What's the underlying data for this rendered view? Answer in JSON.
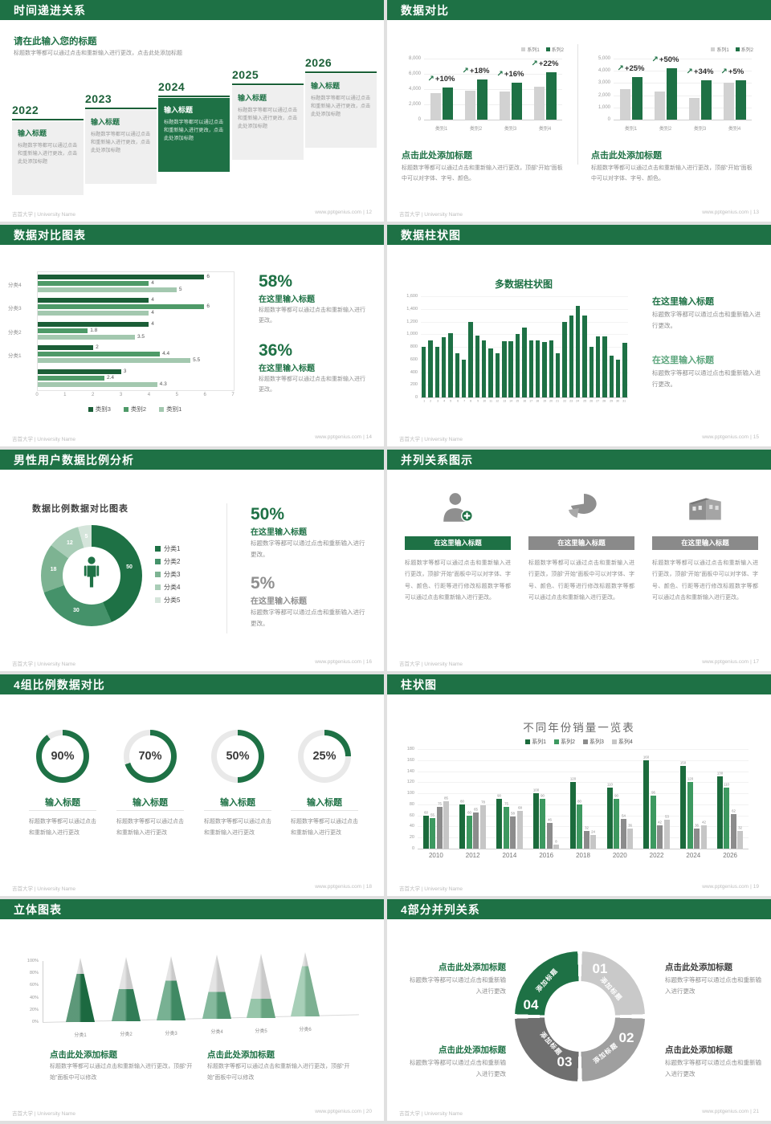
{
  "colors": {
    "green": "#1e7145",
    "green_mid": "#4e9a68",
    "green_light": "#a3c8af",
    "gray_bar": "#d2d2d2",
    "dark": "#3f3f3f",
    "body_gray": "#8f8f8f"
  },
  "footer": {
    "left": "吉首大学 | University Name",
    "site": "www.pptgenius.com",
    "sep": " | "
  },
  "slides": [
    {
      "page": "12",
      "title": "时间递进关系",
      "heading": "请在此输入您的标题",
      "intro": "标题数字等都可以通过点击和重新输入进行更改，点击此处添加标题",
      "item_title": "输入标题",
      "item_body": "标题数字等都可以通过点击和重新输入进行更改，点击此处添加标题",
      "years": [
        "2022",
        "2023",
        "2024",
        "2025",
        "2026"
      ],
      "highlight_year": "2024"
    },
    {
      "page": "13",
      "title": "数据对比",
      "charts": [
        {
          "type": "bar",
          "legend": [
            "系列1",
            "系列2"
          ],
          "yticks": [
            "8,000",
            "6,000",
            "4,000",
            "2,000",
            "0"
          ],
          "ymax": 8000,
          "categories": [
            "类别1",
            "类别2",
            "类别3",
            "类别4"
          ],
          "series1": [
            3500,
            3800,
            3700,
            4300
          ],
          "series2": [
            4200,
            5300,
            4800,
            6200
          ],
          "deltas": [
            "+10%",
            "+18%",
            "+16%",
            "+22%"
          ],
          "heading": "点击此处添加标题",
          "body": "标题数字等都可以通过点击和重新输入进行更改，顶部“开始”面板中可以对字体、字号、颜色。"
        },
        {
          "type": "bar",
          "legend": [
            "系列1",
            "系列2"
          ],
          "yticks": [
            "5,000",
            "4,000",
            "3,000",
            "2,000",
            "1,000",
            "0"
          ],
          "ymax": 5000,
          "categories": [
            "类别1",
            "类别2",
            "类别3",
            "类别4"
          ],
          "series1": [
            2500,
            2300,
            1800,
            3000
          ],
          "series2": [
            3500,
            4200,
            3200,
            3200
          ],
          "deltas": [
            "+25%",
            "+50%",
            "+34%",
            "+5%"
          ],
          "heading": "点击此处添加标题",
          "body": "标题数字等都可以通过点击和重新输入进行更改，顶部“开始”面板中可以对字体、字号、颜色。"
        }
      ]
    },
    {
      "page": "14",
      "title": "数据对比图表",
      "chart": {
        "type": "bar-horizontal",
        "xmax": 7,
        "xticks": [
          "0",
          "1",
          "2",
          "3",
          "4",
          "5",
          "6",
          "7"
        ],
        "legend": [
          "类别3",
          "类别2",
          "类别1"
        ],
        "series_colors": [
          "#1b5e37",
          "#4e9a68",
          "#a3c8af"
        ],
        "groups": [
          {
            "label": "分类4",
            "values": [
              6,
              4,
              5
            ]
          },
          {
            "label": "分类3",
            "values": [
              4,
              6,
              4
            ]
          },
          {
            "label": "分类2",
            "values": [
              4,
              1.8,
              3.5
            ]
          },
          {
            "label": "分类1",
            "values": [
              2,
              4.4,
              5.5
            ]
          },
          {
            "label": "",
            "values": [
              3,
              2.4,
              4.3
            ]
          }
        ]
      },
      "stats": [
        {
          "value": "58%",
          "label": "在这里输入标题",
          "body": "标题数字等都可以通过点击和重新输入进行更改。"
        },
        {
          "value": "36%",
          "label": "在这里输入标题",
          "body": "标题数字等都可以通过点击和重新输入进行更改。"
        }
      ]
    },
    {
      "page": "15",
      "title": "数据柱状图",
      "chart": {
        "type": "bar",
        "title": "多数据柱状图",
        "ymax": 1600,
        "yticks": [
          "1,600",
          "1,400",
          "1,200",
          "1,000",
          "800",
          "600",
          "400",
          "200",
          "0"
        ],
        "values": [
          800,
          900,
          800,
          950,
          1020,
          700,
          600,
          1200,
          980,
          900,
          780,
          700,
          890,
          890,
          1000,
          1100,
          900,
          900,
          880,
          900,
          700,
          1200,
          1300,
          1450,
          1300,
          800,
          960,
          970,
          660,
          600,
          870
        ]
      },
      "blocks": [
        {
          "heading": "在这里输入标题",
          "body": "标题数字等都可以通过点击和重新输入进行更改。",
          "strong": true
        },
        {
          "heading": "在这里输入标题",
          "body": "标题数字等都可以通过点击和重新输入进行更改。",
          "strong": false
        }
      ]
    },
    {
      "page": "16",
      "title": "男性用户数据比例分析",
      "chart": {
        "type": "pie",
        "title": "数据比例数据对比图表",
        "values": [
          50,
          30,
          18,
          12,
          5
        ],
        "labels": [
          "分类1",
          "分类2",
          "分类3",
          "分类4",
          "分类5"
        ],
        "colors": [
          "#1e7145",
          "#45926a",
          "#7db392",
          "#a9cdb7",
          "#d5e5db"
        ]
      },
      "stats": [
        {
          "value": "50%",
          "label": "在这里输入标题",
          "body": "标题数字等都可以通过点击和重新输入进行更改。",
          "green": true
        },
        {
          "value": "5%",
          "label": "在这里输入标题",
          "body": "标题数字等都可以通过点击和重新输入进行更改。",
          "green": false
        }
      ]
    },
    {
      "page": "17",
      "title": "并列关系图示",
      "banner": "在这里输入标题",
      "col_body": "标题数字等都可以通过点击和重新输入进行更改，顶部“开始”面板中可以对字体、字号、颜色、行距等进行修改标题数字等都可以通过点击和重新输入进行更改。",
      "icons": [
        "person-add",
        "pie-3d",
        "building"
      ]
    },
    {
      "page": "18",
      "title": "4组比例数据对比",
      "item_title": "输入标题",
      "item_body": "标题数字等都可以通过点击和重新输入进行更改",
      "gauges": [
        90,
        70,
        50,
        25
      ]
    },
    {
      "page": "19",
      "title": "柱状图",
      "chart": {
        "type": "bar",
        "title": "不同年份销量一览表",
        "legend": [
          "系列1",
          "系列2",
          "系列3",
          "系列4"
        ],
        "legend_colors": [
          "#1b6b3c",
          "#3d9960",
          "#8c8c8c",
          "#c6c6c6"
        ],
        "ymax": 180,
        "yticks": [
          "180",
          "160",
          "140",
          "120",
          "100",
          "80",
          "60",
          "40",
          "20",
          "0"
        ],
        "categories": [
          "2010",
          "2012",
          "2014",
          "2016",
          "2018",
          "2020",
          "2022",
          "2024",
          "2026"
        ],
        "series": [
          [
            60,
            80,
            90,
            100,
            120,
            110,
            160,
            150,
            130
          ],
          [
            55,
            60,
            75,
            90,
            80,
            90,
            96,
            120,
            110
          ],
          [
            75,
            65,
            58,
            46,
            32,
            54,
            42,
            36,
            62
          ],
          [
            85,
            78,
            68,
            8,
            24,
            36,
            53,
            42,
            32
          ]
        ]
      }
    },
    {
      "page": "20",
      "title": "立体图表",
      "chart": {
        "type": "cone",
        "yticks": [
          "100%",
          "80%",
          "60%",
          "40%",
          "20%",
          "0%"
        ],
        "labels": [
          "分类1",
          "分类2",
          "分类3",
          "分类4",
          "分类5",
          "分类6"
        ],
        "fills": [
          75,
          50,
          62,
          42,
          30,
          78
        ],
        "colors": [
          "#1e7145",
          "#35855c",
          "#44936a",
          "#569e77",
          "#6fb08a",
          "#86bd9d"
        ]
      },
      "blocks": [
        {
          "heading": "点击此处添加标题",
          "body": "标题数字等都可以通过点击和重新输入进行更改，顶部“开始”面板中可以修改"
        },
        {
          "heading": "点击此处添加标题",
          "body": "标题数字等都可以通过点击和重新输入进行更改，顶部“开始”面板中可以修改"
        }
      ]
    },
    {
      "page": "21",
      "title": "4部分并列关系",
      "ring": {
        "label": "添加标题",
        "segments": [
          {
            "num": "01",
            "color": "#c9c9c9"
          },
          {
            "num": "02",
            "color": "#9f9f9f"
          },
          {
            "num": "03",
            "color": "#6f6f6f"
          },
          {
            "num": "04",
            "color": "#1e7145"
          }
        ]
      },
      "blocks": [
        {
          "heading": "点击此处添加标题",
          "body": "标题数字等都可以通过点击和重新输入进行更改",
          "green": true
        },
        {
          "heading": "点击此处添加标题",
          "body": "标题数字等都可以通过点击和重新输入进行更改",
          "green": false
        },
        {
          "heading": "点击此处添加标题",
          "body": "标题数字等都可以通过点击和重新输入进行更改",
          "green": true
        },
        {
          "heading": "点击此处添加标题",
          "body": "标题数字等都可以通过点击和重新输入进行更改",
          "green": false
        }
      ]
    }
  ]
}
